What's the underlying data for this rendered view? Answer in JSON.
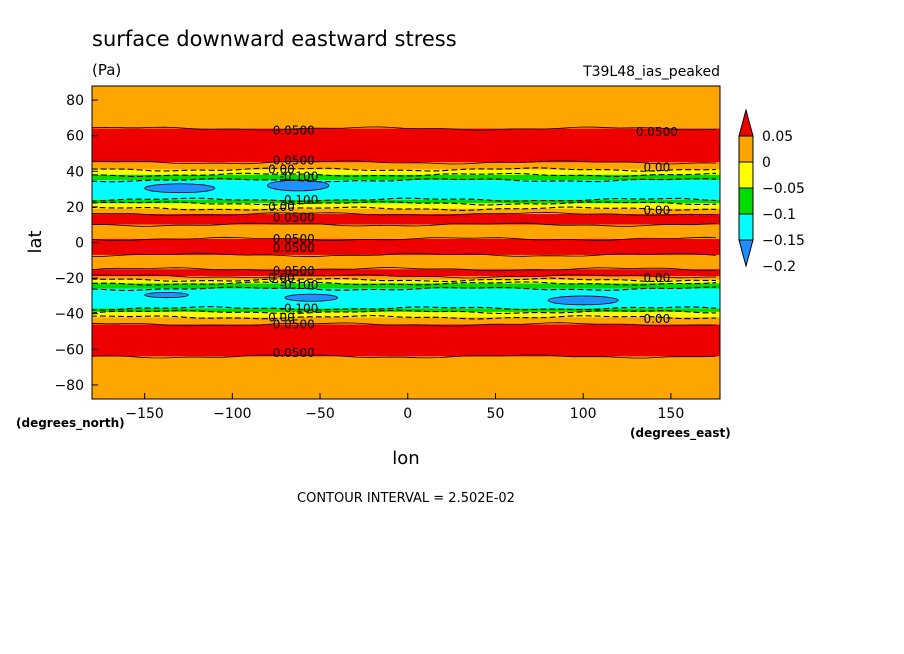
{
  "chart_data": {
    "type": "heatmap",
    "title": "surface downward eastward stress",
    "units": "(Pa)",
    "run_label": "T39L48_ias_peaked",
    "xlabel": "lon",
    "ylabel": "lat",
    "x_units": "(degrees_east)",
    "y_units": "(degrees_north)",
    "xlim": [
      -180,
      178
    ],
    "ylim": [
      -87.9,
      87.9
    ],
    "x_ticks": [
      -150,
      -100,
      -50,
      0,
      50,
      100,
      150
    ],
    "x_tick_labels": [
      "−150",
      "−100",
      "−50",
      "0",
      "50",
      "100",
      "150"
    ],
    "y_ticks": [
      80,
      60,
      40,
      20,
      0,
      -20,
      -40,
      -60,
      -80
    ],
    "y_tick_labels": [
      "80",
      "60",
      "40",
      "20",
      "0",
      "−20",
      "−40",
      "−60",
      "−80"
    ],
    "contour_interval_text": "CONTOUR INTERVAL = 2.502E-02",
    "colorbar": {
      "levels": [
        -0.2,
        -0.15,
        -0.1,
        -0.05,
        0,
        0.05
      ],
      "labels": [
        "−0.2",
        "−0.15",
        "−0.1",
        "−0.05",
        "0",
        "0.05"
      ],
      "colors": [
        "#1e90ff",
        "#00ffff",
        "#00dd00",
        "#ffff00",
        "#ffa500",
        "#ee0000"
      ]
    },
    "zonal_bands": [
      {
        "lat_from": 87.9,
        "lat_to": 64,
        "category": "0 to 0.05"
      },
      {
        "lat_from": 64,
        "lat_to": 45,
        "category": "> 0.05"
      },
      {
        "lat_from": 45,
        "lat_to": 41,
        "category": "0 to 0.05"
      },
      {
        "lat_from": 41,
        "lat_to": 38,
        "category": "-0.05 to 0"
      },
      {
        "lat_from": 38,
        "lat_to": 35,
        "category": "-0.1 to -0.05"
      },
      {
        "lat_from": 35,
        "lat_to": 24,
        "category": "-0.15 to -0.1"
      },
      {
        "lat_from": 24,
        "lat_to": 22,
        "category": "-0.1 to -0.05"
      },
      {
        "lat_from": 22,
        "lat_to": 19,
        "category": "-0.05 to 0"
      },
      {
        "lat_from": 19,
        "lat_to": 16,
        "category": "0 to 0.05"
      },
      {
        "lat_from": 16,
        "lat_to": 10,
        "category": "> 0.05"
      },
      {
        "lat_from": 10,
        "lat_to": 2,
        "category": "0 to 0.05"
      },
      {
        "lat_from": 2,
        "lat_to": -7,
        "category": "> 0.05"
      },
      {
        "lat_from": -7,
        "lat_to": -15,
        "category": "0 to 0.05"
      },
      {
        "lat_from": -15,
        "lat_to": -19,
        "category": "> 0.05"
      },
      {
        "lat_from": -19,
        "lat_to": -21,
        "category": "0 to 0.05"
      },
      {
        "lat_from": -21,
        "lat_to": -23,
        "category": "-0.05 to 0"
      },
      {
        "lat_from": -23,
        "lat_to": -26,
        "category": "-0.1 to -0.05"
      },
      {
        "lat_from": -26,
        "lat_to": -37,
        "category": "-0.15 to -0.1"
      },
      {
        "lat_from": -37,
        "lat_to": -39,
        "category": "-0.1 to -0.05"
      },
      {
        "lat_from": -39,
        "lat_to": -42,
        "category": "-0.05 to 0"
      },
      {
        "lat_from": -42,
        "lat_to": -46,
        "category": "0 to 0.05"
      },
      {
        "lat_from": -46,
        "lat_to": -64,
        "category": "> 0.05"
      },
      {
        "lat_from": -64,
        "lat_to": -87.9,
        "category": "0 to 0.05"
      }
    ],
    "minimum_patches": [
      {
        "lon": [
          -150,
          -110
        ],
        "lat": [
          28,
          33
        ],
        "category": "< -0.15"
      },
      {
        "lon": [
          -80,
          -45
        ],
        "lat": [
          29,
          35
        ],
        "category": "< -0.15"
      },
      {
        "lon": [
          -150,
          -125
        ],
        "lat": [
          -31,
          -28
        ],
        "category": "< -0.15"
      },
      {
        "lon": [
          -70,
          -40
        ],
        "lat": [
          -33,
          -29
        ],
        "category": "< -0.15"
      },
      {
        "lon": [
          80,
          120
        ],
        "lat": [
          -35,
          -30
        ],
        "category": "< -0.15"
      }
    ],
    "contour_labels": [
      {
        "text": "0.0500",
        "lon": -65,
        "lat": 63
      },
      {
        "text": "0.0500",
        "lon": 142,
        "lat": 62
      },
      {
        "text": "0.0500",
        "lon": -65,
        "lat": 46
      },
      {
        "text": "0.00",
        "lon": -72,
        "lat": 41
      },
      {
        "text": "0.00",
        "lon": 142,
        "lat": 42
      },
      {
        "text": "-0.100",
        "lon": -62,
        "lat": 37
      },
      {
        "text": "-0.100",
        "lon": -62,
        "lat": 24
      },
      {
        "text": "0.00",
        "lon": -72,
        "lat": 20
      },
      {
        "text": "0.0500",
        "lon": -65,
        "lat": 14
      },
      {
        "text": "0.00",
        "lon": 142,
        "lat": 18
      },
      {
        "text": "0.0500",
        "lon": -65,
        "lat": 2
      },
      {
        "text": "0.0500",
        "lon": -65,
        "lat": -3
      },
      {
        "text": "0.0500",
        "lon": -65,
        "lat": -16
      },
      {
        "text": "0.00",
        "lon": -72,
        "lat": -20
      },
      {
        "text": "0.00",
        "lon": 142,
        "lat": -20
      },
      {
        "text": "-0.100",
        "lon": -62,
        "lat": -24
      },
      {
        "text": "-0.100",
        "lon": -62,
        "lat": -37
      },
      {
        "text": "0.00",
        "lon": -72,
        "lat": -42
      },
      {
        "text": "0.00",
        "lon": 142,
        "lat": -43
      },
      {
        "text": "0.0500",
        "lon": -65,
        "lat": -46
      },
      {
        "text": "0.0500",
        "lon": -65,
        "lat": -62
      }
    ],
    "grid": false
  }
}
